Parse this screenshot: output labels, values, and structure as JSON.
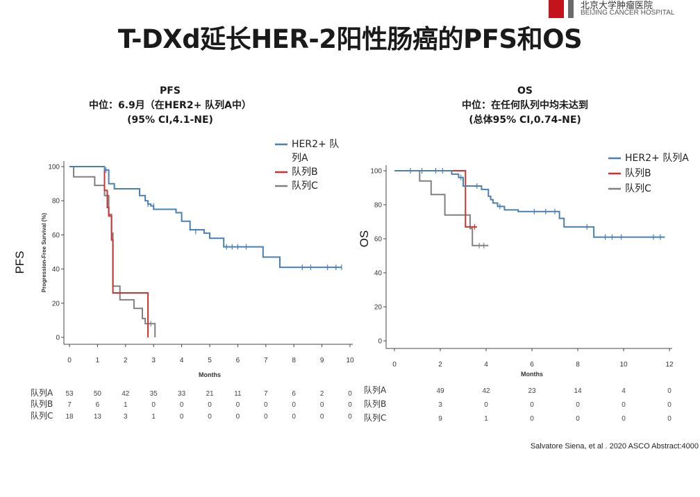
{
  "logo": {
    "cn_text": "北京大学肿瘤医院",
    "en_text": "BEIJING CANCER HOSPITAL",
    "red": "#c4141b"
  },
  "slide": {
    "title": "T-DXd延长HER-2阳性肠癌的PFS和OS",
    "source": "Salvatore Siena, et al . 2020 ASCO Abstract:4000"
  },
  "colors": {
    "HER2+ 队列A": "#4a7fb5",
    "队列B": "#d0302e",
    "队列C": "#808080"
  },
  "chart_data": [
    {
      "type": "line",
      "title": "PFS",
      "subtitle_lines": [
        "中位：6.9月（在HER2+ 队列A中）",
        "(95% CI,4.1-NE)"
      ],
      "xlabel": "Months",
      "ylabel": "Progression-Free Survival (%)",
      "side_label": "PFS",
      "xlim": [
        0,
        10
      ],
      "ylim": [
        0,
        100
      ],
      "xticks": [
        0,
        1,
        2,
        3,
        4,
        5,
        6,
        7,
        8,
        9,
        10
      ],
      "yticks": [
        0,
        20,
        40,
        60,
        80,
        100
      ],
      "legend_position": "top-right",
      "legend": [
        {
          "text_lines": [
            "HER2+ 队",
            "列A"
          ],
          "color": "#4a7fb5"
        },
        {
          "text_lines": [
            "队列B"
          ],
          "color": "#d0302e"
        },
        {
          "text_lines": [
            "队列C"
          ],
          "color": "#808080"
        }
      ],
      "series": [
        {
          "name": "HER2+ 队列A",
          "color": "#4a7fb5",
          "points": [
            [
              0,
              100
            ],
            [
              1.25,
              100
            ],
            [
              1.25,
              98
            ],
            [
              1.4,
              98
            ],
            [
              1.4,
              90
            ],
            [
              1.6,
              90
            ],
            [
              1.6,
              87
            ],
            [
              2.5,
              87
            ],
            [
              2.5,
              83
            ],
            [
              2.7,
              83
            ],
            [
              2.7,
              80
            ],
            [
              2.8,
              80
            ],
            [
              2.8,
              78
            ],
            [
              2.9,
              78
            ],
            [
              2.9,
              77
            ],
            [
              3,
              77
            ],
            [
              3,
              75
            ],
            [
              3.8,
              75
            ],
            [
              3.8,
              73
            ],
            [
              4,
              73
            ],
            [
              4,
              68
            ],
            [
              4.3,
              68
            ],
            [
              4.3,
              63
            ],
            [
              4.8,
              63
            ],
            [
              4.8,
              61
            ],
            [
              5,
              61
            ],
            [
              5,
              58
            ],
            [
              5.5,
              58
            ],
            [
              5.5,
              53
            ],
            [
              6.9,
              53
            ],
            [
              6.9,
              47
            ],
            [
              7.5,
              47
            ],
            [
              7.5,
              41
            ],
            [
              9.7,
              41
            ]
          ],
          "censors": [
            [
              1.3,
              98
            ],
            [
              2.8,
              78
            ],
            [
              3,
              77
            ],
            [
              4.3,
              64
            ],
            [
              4.5,
              62
            ],
            [
              5.6,
              53
            ],
            [
              5.8,
              53
            ],
            [
              6,
              53
            ],
            [
              6.3,
              53
            ],
            [
              8.3,
              41
            ],
            [
              8.6,
              41
            ],
            [
              9.2,
              41
            ],
            [
              9.5,
              41
            ],
            [
              9.7,
              41
            ]
          ]
        },
        {
          "name": "队列B",
          "color": "#d0302e",
          "points": [
            [
              0,
              100
            ],
            [
              1.25,
              100
            ],
            [
              1.25,
              86
            ],
            [
              1.35,
              86
            ],
            [
              1.35,
              76
            ],
            [
              1.4,
              76
            ],
            [
              1.4,
              71
            ],
            [
              1.5,
              71
            ],
            [
              1.5,
              57
            ],
            [
              1.55,
              57
            ],
            [
              1.55,
              26
            ],
            [
              2.8,
              26
            ],
            [
              2.8,
              0
            ]
          ],
          "censors": []
        },
        {
          "name": "队列C",
          "color": "#808080",
          "points": [
            [
              0,
              100
            ],
            [
              0.15,
              100
            ],
            [
              0.15,
              94
            ],
            [
              0.9,
              94
            ],
            [
              0.9,
              89
            ],
            [
              1.25,
              89
            ],
            [
              1.25,
              83
            ],
            [
              1.4,
              83
            ],
            [
              1.4,
              72
            ],
            [
              1.5,
              72
            ],
            [
              1.5,
              61
            ],
            [
              1.55,
              61
            ],
            [
              1.55,
              30
            ],
            [
              1.8,
              30
            ],
            [
              1.8,
              22
            ],
            [
              2.3,
              22
            ],
            [
              2.3,
              17
            ],
            [
              2.6,
              17
            ],
            [
              2.6,
              11
            ],
            [
              2.7,
              11
            ],
            [
              2.7,
              8
            ],
            [
              3.05,
              8
            ],
            [
              3.05,
              0
            ]
          ],
          "censors": [
            [
              2.9,
              8
            ]
          ]
        }
      ],
      "risk_table": {
        "x": [
          0,
          1,
          2,
          3,
          4,
          5,
          6,
          7,
          8,
          9,
          10
        ],
        "rows": [
          {
            "label": "队列A",
            "values": [
              "53",
              "50",
              "42",
              "35",
              "33",
              "21",
              "11",
              "7",
              "6",
              "2",
              "0"
            ]
          },
          {
            "label": "队列B",
            "values": [
              "7",
              "6",
              "1",
              "0",
              "0",
              "0",
              "0",
              "0",
              "0",
              "0",
              "0"
            ]
          },
          {
            "label": "队列C",
            "values": [
              "18",
              "13",
              "3",
              "1",
              "0",
              "0",
              "0",
              "0",
              "0",
              "0",
              "0"
            ]
          }
        ]
      }
    },
    {
      "type": "line",
      "title": "OS",
      "subtitle_lines": [
        "中位：在任何队列中均未达到",
        "(总体95% CI,0.74-NE)"
      ],
      "xlabel": "Months",
      "ylabel": "",
      "side_label": "OS",
      "xlim": [
        0,
        12
      ],
      "ylim": [
        0,
        100
      ],
      "xticks": [
        0,
        2,
        4,
        6,
        8,
        10,
        12
      ],
      "yticks": [
        0,
        20,
        40,
        60,
        80,
        100
      ],
      "legend_position": "top-right",
      "legend": [
        {
          "text_lines": [
            "HER2+ 队列A"
          ],
          "color": "#4a7fb5"
        },
        {
          "text_lines": [
            "队列B"
          ],
          "color": "#d0302e"
        },
        {
          "text_lines": [
            "队列C"
          ],
          "color": "#808080"
        }
      ],
      "series": [
        {
          "name": "HER2+ 队列A",
          "color": "#4a7fb5",
          "points": [
            [
              0,
              100
            ],
            [
              2.5,
              100
            ],
            [
              2.5,
              98
            ],
            [
              2.8,
              98
            ],
            [
              2.8,
              96
            ],
            [
              3,
              96
            ],
            [
              3,
              91
            ],
            [
              3.8,
              91
            ],
            [
              3.8,
              89
            ],
            [
              4.1,
              89
            ],
            [
              4.1,
              85
            ],
            [
              4.2,
              85
            ],
            [
              4.2,
              83
            ],
            [
              4.3,
              83
            ],
            [
              4.3,
              81
            ],
            [
              4.5,
              81
            ],
            [
              4.5,
              79
            ],
            [
              4.8,
              79
            ],
            [
              4.8,
              77
            ],
            [
              5.4,
              77
            ],
            [
              5.4,
              76
            ],
            [
              7.2,
              76
            ],
            [
              7.2,
              72
            ],
            [
              7.4,
              72
            ],
            [
              7.4,
              67
            ],
            [
              8.7,
              67
            ],
            [
              8.7,
              61
            ],
            [
              11.8,
              61
            ]
          ],
          "censors": [
            [
              0.7,
              100
            ],
            [
              1.2,
              100
            ],
            [
              1.8,
              100
            ],
            [
              2.1,
              100
            ],
            [
              2.9,
              96
            ],
            [
              3.6,
              91
            ],
            [
              4.6,
              79
            ],
            [
              6.1,
              76
            ],
            [
              6.6,
              76
            ],
            [
              7,
              76
            ],
            [
              8.4,
              67
            ],
            [
              9.2,
              61
            ],
            [
              9.5,
              61
            ],
            [
              9.9,
              61
            ],
            [
              11.3,
              61
            ],
            [
              11.6,
              61
            ]
          ]
        },
        {
          "name": "队列B",
          "color": "#d0302e",
          "points": [
            [
              0,
              100
            ],
            [
              3.1,
              100
            ],
            [
              3.1,
              67
            ],
            [
              3.6,
              67
            ]
          ],
          "censors": [
            [
              3.5,
              67
            ]
          ]
        },
        {
          "name": "队列C",
          "color": "#808080",
          "points": [
            [
              0,
              100
            ],
            [
              1.1,
              100
            ],
            [
              1.1,
              94
            ],
            [
              1.6,
              94
            ],
            [
              1.6,
              86
            ],
            [
              2.2,
              86
            ],
            [
              2.2,
              74
            ],
            [
              3.3,
              74
            ],
            [
              3.3,
              66
            ],
            [
              3.4,
              66
            ],
            [
              3.4,
              56
            ],
            [
              4.1,
              56
            ]
          ],
          "censors": [
            [
              3.7,
              56
            ],
            [
              3.9,
              56
            ]
          ]
        }
      ],
      "risk_table": {
        "x": [
          2,
          4,
          6,
          8,
          10,
          12
        ],
        "rows": [
          {
            "label": "队列A",
            "values": [
              "49",
              "42",
              "23",
              "14",
              "4",
              "0"
            ]
          },
          {
            "label": "队列B",
            "values": [
              "3",
              "0",
              "0",
              "0",
              "0",
              "0"
            ]
          },
          {
            "label": "队列C",
            "values": [
              "9",
              "1",
              "0",
              "0",
              "0",
              "0"
            ]
          }
        ]
      }
    }
  ]
}
